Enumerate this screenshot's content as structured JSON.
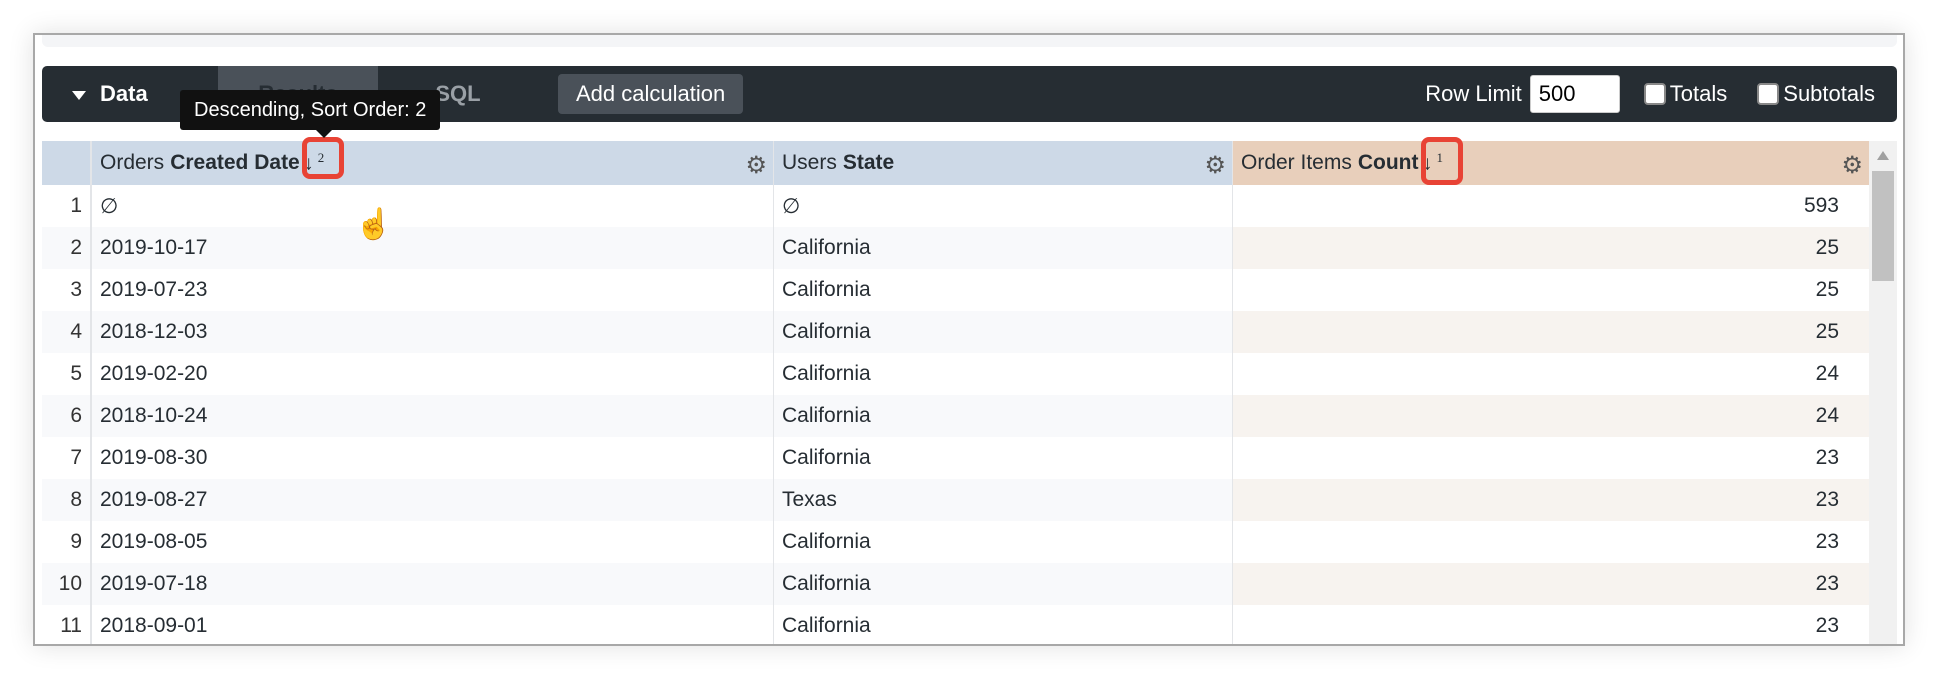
{
  "toolbar": {
    "data_label": "Data",
    "tabs": [
      {
        "label": "Results",
        "active": true
      },
      {
        "label": "SQL",
        "active": false
      }
    ],
    "add_calculation": "Add calculation",
    "row_limit_label": "Row Limit",
    "row_limit_value": "500",
    "totals_label": "Totals",
    "totals_checked": false,
    "subtotals_label": "Subtotals",
    "subtotals_checked": false
  },
  "tooltip": "Descending, Sort Order: 2",
  "columns": [
    {
      "prefix": "Orders",
      "name": "Created Date",
      "sort": "↓",
      "sort_order": "2",
      "color": "#cdd9e7"
    },
    {
      "prefix": "Users",
      "name": "State",
      "color": "#cdd9e7"
    },
    {
      "prefix": "Order Items",
      "name": "Count",
      "sort": "↓",
      "sort_order": "1",
      "color": "#e8cfbb"
    }
  ],
  "rows": [
    [
      "1",
      "∅",
      "∅",
      "593"
    ],
    [
      "2",
      "2019-10-17",
      "California",
      "25"
    ],
    [
      "3",
      "2019-07-23",
      "California",
      "25"
    ],
    [
      "4",
      "2018-12-03",
      "California",
      "25"
    ],
    [
      "5",
      "2019-02-20",
      "California",
      "24"
    ],
    [
      "6",
      "2018-10-24",
      "California",
      "24"
    ],
    [
      "7",
      "2019-08-30",
      "California",
      "23"
    ],
    [
      "8",
      "2019-08-27",
      "Texas",
      "23"
    ],
    [
      "9",
      "2019-08-05",
      "California",
      "23"
    ],
    [
      "10",
      "2019-07-18",
      "California",
      "23"
    ],
    [
      "11",
      "2018-09-01",
      "California",
      "23"
    ]
  ],
  "highlight_color": "#e84335"
}
